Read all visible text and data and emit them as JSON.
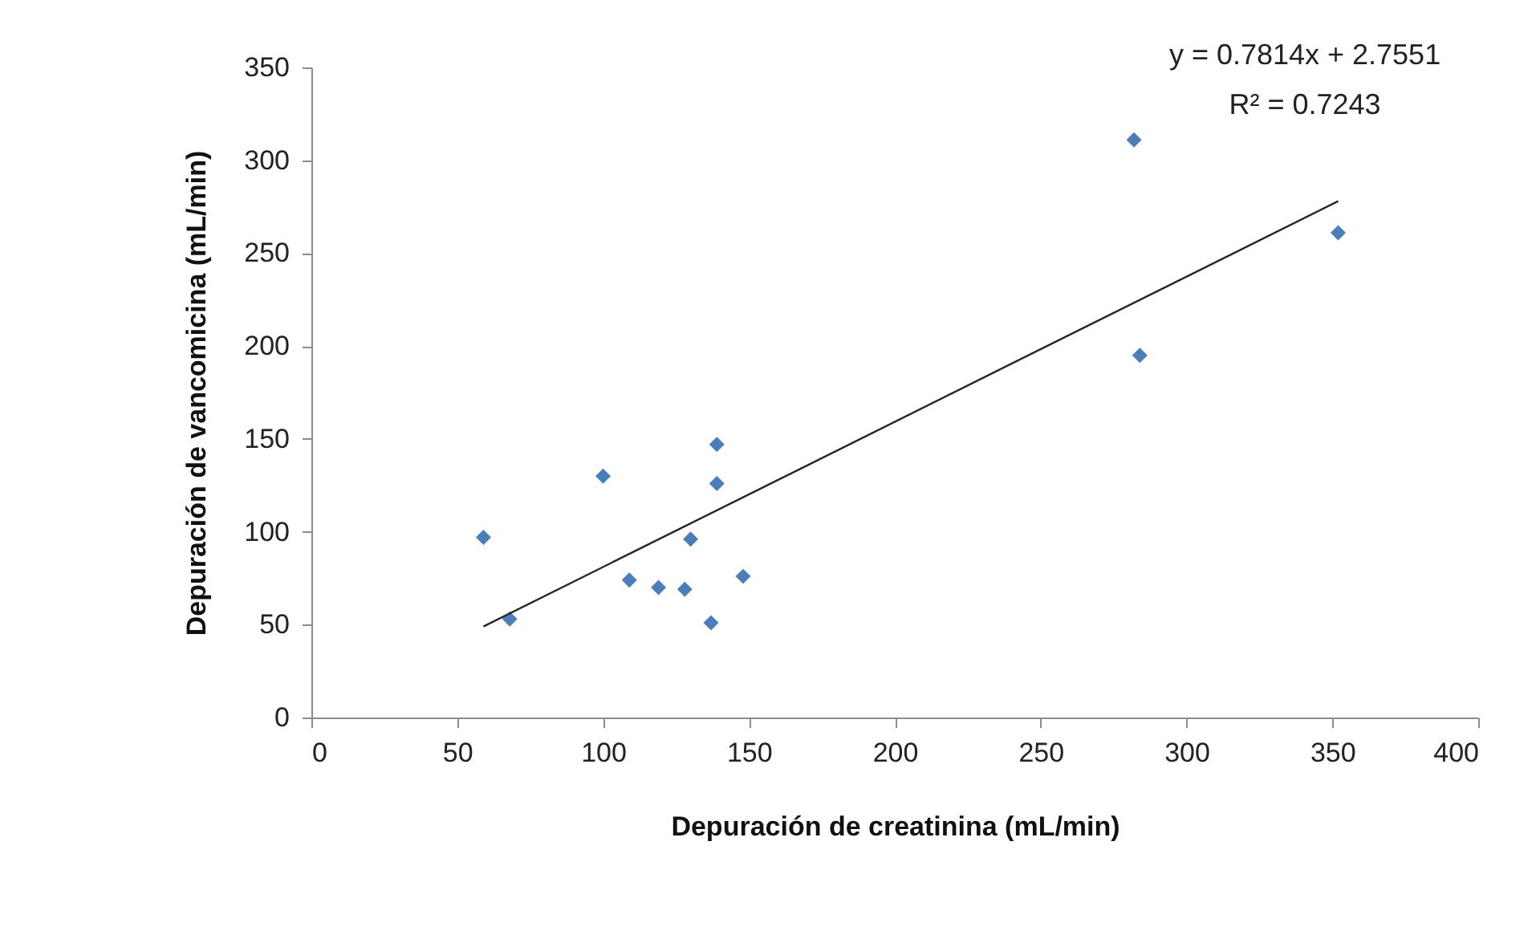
{
  "chart_data": {
    "type": "scatter",
    "xlabel": "Depuración de creatinina (mL/min)",
    "ylabel": "Depuración de vancomicina (mL/min)",
    "annotations": [
      "y = 0.7814x + 2.7551",
      "R² = 0.7243"
    ],
    "xlim": [
      0,
      400
    ],
    "xticks": [
      0,
      50,
      100,
      150,
      200,
      250,
      300,
      350,
      400
    ],
    "ylim": [
      0,
      350
    ],
    "yticks": [
      0,
      50,
      100,
      150,
      200,
      250,
      300,
      350
    ],
    "series": [
      {
        "marker": "diamond",
        "color": "#4a7ebb",
        "x": [
          59,
          68,
          100,
          109,
          119,
          128,
          130,
          137,
          139,
          139,
          148,
          282,
          352,
          284
        ],
        "values": [
          97,
          53,
          130,
          74,
          70,
          69,
          96,
          51,
          147,
          126,
          76,
          311,
          261,
          195
        ]
      },
      {
        "type": "line",
        "marker": "none",
        "color": "#262626",
        "x": [
          59,
          352
        ],
        "values": [
          49,
          278
        ]
      }
    ]
  }
}
